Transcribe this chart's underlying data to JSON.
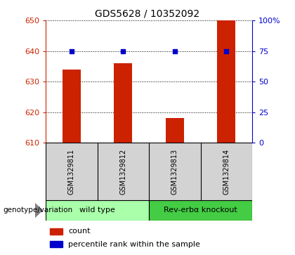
{
  "title": "GDS5628 / 10352092",
  "samples": [
    "GSM1329811",
    "GSM1329812",
    "GSM1329813",
    "GSM1329814"
  ],
  "counts": [
    634,
    636,
    618,
    650
  ],
  "percentiles": [
    75,
    75,
    75,
    75
  ],
  "ylim_left": [
    610,
    650
  ],
  "ylim_right": [
    0,
    100
  ],
  "yticks_left": [
    610,
    620,
    630,
    640,
    650
  ],
  "yticks_right": [
    0,
    25,
    50,
    75,
    100
  ],
  "ytick_labels_right": [
    "0",
    "25",
    "50",
    "75",
    "100%"
  ],
  "bar_color": "#cc2200",
  "dot_color": "#0000cc",
  "group1_label": "wild type",
  "group2_label": "Rev-erbα knockout",
  "group1_color": "#aaffaa",
  "group2_color": "#44cc44",
  "xlabel_label": "genotype/variation",
  "bar_width": 0.35,
  "title_fontsize": 10,
  "tick_fontsize": 8,
  "sample_fontsize": 7,
  "group_fontsize": 8,
  "legend_fontsize": 8,
  "cell_bg": "#d3d3d3"
}
